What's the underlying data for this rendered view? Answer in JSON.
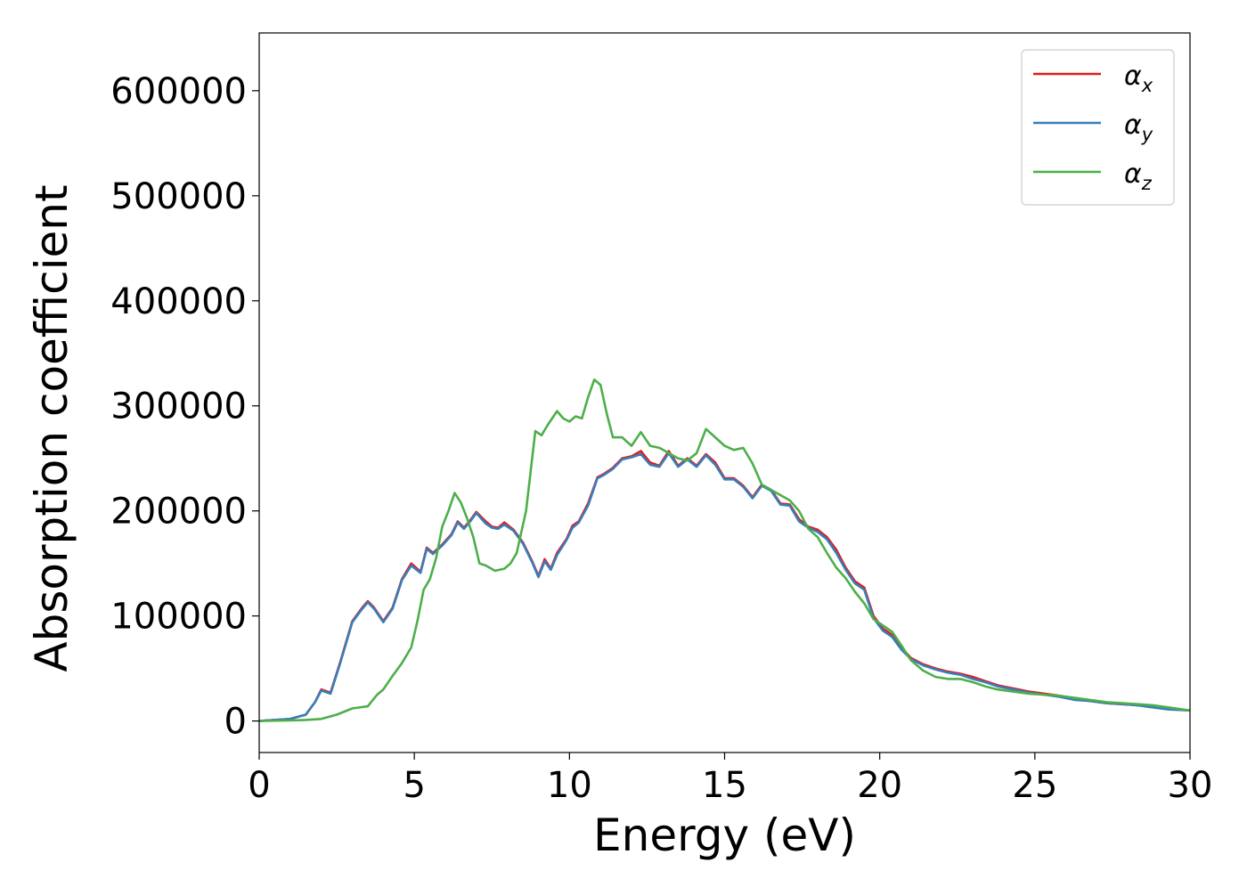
{
  "chart_data": {
    "type": "line",
    "title": "",
    "xlabel": "Energy (eV)",
    "ylabel": "Absorption coefficient",
    "xlim": [
      0,
      30
    ],
    "ylim": [
      -30000,
      655000
    ],
    "xticks": [
      0,
      5,
      10,
      15,
      20,
      25,
      30
    ],
    "xtick_labels": [
      "0",
      "5",
      "10",
      "15",
      "20",
      "25",
      "30"
    ],
    "yticks": [
      0,
      100000,
      200000,
      300000,
      400000,
      500000,
      600000
    ],
    "ytick_labels": [
      "0",
      "100000",
      "200000",
      "300000",
      "400000",
      "500000",
      "600000"
    ],
    "grid": false,
    "legend_position": "top-right",
    "series": [
      {
        "name": "αx",
        "symbol": "α",
        "subscript": "x",
        "color": "#e41a1c",
        "x": [
          0,
          1,
          1.5,
          1.8,
          2.0,
          2.3,
          2.6,
          3.0,
          3.3,
          3.5,
          3.7,
          4.0,
          4.3,
          4.6,
          4.9,
          5.2,
          5.4,
          5.6,
          5.9,
          6.2,
          6.4,
          6.6,
          6.8,
          7.0,
          7.3,
          7.5,
          7.7,
          7.9,
          8.2,
          8.5,
          8.8,
          9.0,
          9.2,
          9.4,
          9.6,
          9.9,
          10.1,
          10.3,
          10.6,
          10.9,
          11.1,
          11.4,
          11.7,
          12.0,
          12.3,
          12.6,
          12.9,
          13.2,
          13.5,
          13.8,
          14.1,
          14.4,
          14.7,
          15.0,
          15.3,
          15.6,
          15.9,
          16.2,
          16.5,
          16.8,
          17.1,
          17.4,
          17.7,
          18.0,
          18.3,
          18.6,
          18.9,
          19.2,
          19.5,
          19.8,
          20.1,
          20.4,
          20.7,
          21.0,
          21.4,
          21.8,
          22.2,
          22.6,
          23.0,
          23.4,
          23.8,
          24.3,
          24.8,
          25.3,
          25.8,
          26.3,
          26.8,
          27.3,
          27.8,
          28.3,
          28.8,
          29.3,
          30.0
        ],
        "y": [
          0,
          2000,
          6000,
          18000,
          30000,
          27000,
          55000,
          95000,
          107000,
          114000,
          108000,
          95000,
          108000,
          135000,
          150000,
          142000,
          165000,
          160000,
          168000,
          178000,
          190000,
          184000,
          191000,
          199000,
          190000,
          185000,
          184000,
          189000,
          182000,
          170000,
          152000,
          138000,
          154000,
          145000,
          160000,
          173000,
          186000,
          190000,
          207000,
          232000,
          235000,
          241000,
          250000,
          252000,
          257000,
          246000,
          243000,
          257000,
          243000,
          250000,
          243000,
          254000,
          246000,
          231000,
          231000,
          224000,
          213000,
          225000,
          220000,
          207000,
          206000,
          192000,
          185000,
          182000,
          175000,
          163000,
          146000,
          133000,
          127000,
          100000,
          88000,
          82000,
          70000,
          60000,
          54000,
          50000,
          47000,
          45000,
          42000,
          38000,
          34000,
          31000,
          28000,
          26000,
          24000,
          21000,
          19000,
          17000,
          16000,
          15000,
          14000,
          12000,
          10000
        ]
      },
      {
        "name": "αy",
        "symbol": "α",
        "subscript": "y",
        "color": "#377eb8",
        "x": [
          0,
          1,
          1.5,
          1.8,
          2.0,
          2.3,
          2.6,
          3.0,
          3.3,
          3.5,
          3.7,
          4.0,
          4.3,
          4.6,
          4.9,
          5.2,
          5.4,
          5.6,
          5.9,
          6.2,
          6.4,
          6.6,
          6.8,
          7.0,
          7.3,
          7.5,
          7.7,
          7.9,
          8.2,
          8.5,
          8.8,
          9.0,
          9.2,
          9.4,
          9.6,
          9.9,
          10.1,
          10.3,
          10.6,
          10.9,
          11.1,
          11.4,
          11.7,
          12.0,
          12.3,
          12.6,
          12.9,
          13.2,
          13.5,
          13.8,
          14.1,
          14.4,
          14.7,
          15.0,
          15.3,
          15.6,
          15.9,
          16.2,
          16.5,
          16.8,
          17.1,
          17.4,
          17.7,
          18.0,
          18.3,
          18.6,
          18.9,
          19.2,
          19.5,
          19.8,
          20.1,
          20.4,
          20.7,
          21.0,
          21.4,
          21.8,
          22.2,
          22.6,
          23.0,
          23.4,
          23.8,
          24.3,
          24.8,
          25.3,
          25.8,
          26.3,
          26.8,
          27.3,
          27.8,
          28.3,
          28.8,
          29.3,
          30.0
        ],
        "y": [
          0,
          2000,
          6000,
          18000,
          29000,
          26000,
          54000,
          94000,
          106000,
          113000,
          107000,
          94000,
          107000,
          134000,
          148000,
          141000,
          164000,
          159000,
          167000,
          177000,
          189000,
          183000,
          190000,
          198000,
          188000,
          184000,
          183000,
          187000,
          181000,
          169000,
          151000,
          137000,
          152000,
          144000,
          158000,
          172000,
          184000,
          189000,
          205000,
          231000,
          234000,
          240000,
          249000,
          251000,
          254000,
          244000,
          242000,
          255000,
          242000,
          249000,
          242000,
          253000,
          244000,
          230000,
          230000,
          223000,
          212000,
          224000,
          219000,
          206000,
          205000,
          190000,
          184000,
          180000,
          173000,
          160000,
          144000,
          131000,
          125000,
          98000,
          86000,
          80000,
          68000,
          59000,
          53000,
          49000,
          46000,
          44000,
          40000,
          37000,
          33000,
          30000,
          27000,
          25000,
          23000,
          20000,
          19000,
          17000,
          16000,
          15000,
          13000,
          11000,
          10000
        ]
      },
      {
        "name": "αz",
        "symbol": "α",
        "subscript": "z",
        "color": "#4daf4a",
        "x": [
          0,
          1,
          1.5,
          2.0,
          2.5,
          3.0,
          3.5,
          3.8,
          4.0,
          4.3,
          4.6,
          4.9,
          5.1,
          5.3,
          5.5,
          5.7,
          5.9,
          6.1,
          6.3,
          6.5,
          6.7,
          6.9,
          7.1,
          7.3,
          7.6,
          7.9,
          8.1,
          8.3,
          8.6,
          8.9,
          9.1,
          9.3,
          9.6,
          9.8,
          10.0,
          10.2,
          10.4,
          10.6,
          10.8,
          11.0,
          11.2,
          11.4,
          11.7,
          12.0,
          12.3,
          12.6,
          12.9,
          13.2,
          13.5,
          13.8,
          14.1,
          14.4,
          14.7,
          15.0,
          15.3,
          15.6,
          15.9,
          16.2,
          16.5,
          16.8,
          17.1,
          17.4,
          17.7,
          18.0,
          18.3,
          18.6,
          18.9,
          19.2,
          19.5,
          19.8,
          20.1,
          20.4,
          20.7,
          21.0,
          21.4,
          21.8,
          22.2,
          22.6,
          23.0,
          23.4,
          23.8,
          24.3,
          24.8,
          25.3,
          25.8,
          26.3,
          26.8,
          27.3,
          27.8,
          28.3,
          28.8,
          29.3,
          30.0
        ],
        "y": [
          0,
          500,
          1000,
          2000,
          6000,
          12000,
          14000,
          25000,
          30000,
          43000,
          55000,
          70000,
          95000,
          125000,
          135000,
          155000,
          185000,
          200000,
          217000,
          208000,
          193000,
          175000,
          150000,
          148000,
          143000,
          145000,
          150000,
          160000,
          200000,
          276000,
          272000,
          282000,
          295000,
          288000,
          285000,
          290000,
          288000,
          308000,
          325000,
          320000,
          293000,
          270000,
          270000,
          262000,
          275000,
          262000,
          260000,
          255000,
          250000,
          248000,
          255000,
          278000,
          270000,
          262000,
          258000,
          260000,
          245000,
          225000,
          220000,
          215000,
          210000,
          200000,
          183000,
          175000,
          160000,
          146000,
          136000,
          123000,
          112000,
          97000,
          91000,
          85000,
          72000,
          58000,
          48000,
          42000,
          40000,
          40000,
          37000,
          33000,
          30000,
          28000,
          26000,
          25000,
          24000,
          22000,
          20000,
          18000,
          17000,
          16000,
          15000,
          13000,
          10000
        ]
      }
    ]
  }
}
